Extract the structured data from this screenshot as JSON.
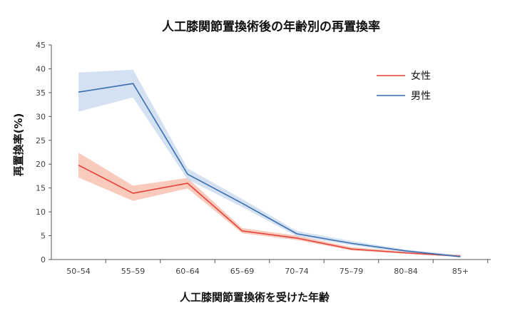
{
  "chart_data": {
    "type": "line",
    "title": "人工膝関節置換術後の年齢別の再置換率",
    "xlabel": "人工膝関節置換術を受けた年齢",
    "ylabel": "再置換率(%)",
    "categories": [
      "50–54",
      "55–59",
      "60–64",
      "65–69",
      "70–74",
      "75–79",
      "80–84",
      "85+"
    ],
    "ylim": [
      0,
      45
    ],
    "yticks": [
      0,
      5,
      10,
      15,
      20,
      25,
      30,
      35,
      40,
      45
    ],
    "grid": false,
    "legend_position": "top-right",
    "series": [
      {
        "name": "女性",
        "color": "#e8403a",
        "band_color": "#f7b9a6",
        "values": [
          19.8,
          13.9,
          16.0,
          6.0,
          4.5,
          2.2,
          1.4,
          0.7
        ],
        "lower": [
          17.2,
          12.3,
          14.9,
          5.5,
          4.1,
          1.9,
          1.2,
          0.5
        ],
        "upper": [
          22.4,
          15.5,
          17.1,
          6.6,
          5.0,
          2.6,
          1.7,
          1.0
        ]
      },
      {
        "name": "男性",
        "color": "#3a6fb0",
        "band_color": "#c6d7ee",
        "values": [
          35.1,
          36.9,
          17.9,
          11.8,
          5.4,
          3.4,
          1.8,
          0.6
        ],
        "lower": [
          31.0,
          34.0,
          16.8,
          11.0,
          4.9,
          3.0,
          1.5,
          0.4
        ],
        "upper": [
          39.2,
          39.8,
          19.1,
          12.7,
          6.0,
          3.9,
          2.1,
          0.9
        ]
      }
    ]
  }
}
